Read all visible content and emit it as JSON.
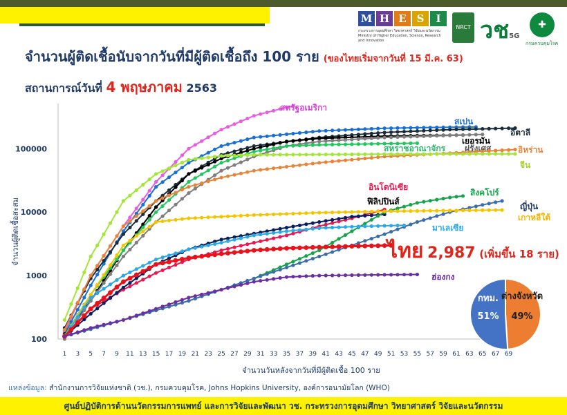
{
  "header": {
    "title": "จำนวนผู้ติดเชื้อนับจากวันที่มีผู้ติดเชื้อถึง 100 ราย",
    "title_note": "(ของไทยเริ่มจากวันที่ 15 มี.ค. 63)",
    "situation_prefix": "สถานการณ์วันที่",
    "situation_date": "4 พฤษภาคม",
    "situation_year": "2563"
  },
  "logos": {
    "mhesi_letters": [
      "M",
      "H",
      "E",
      "S",
      "I"
    ],
    "mhesi_colors": [
      "#2f4f9e",
      "#6a3d99",
      "#e07b1a",
      "#d9a300",
      "#1d8a4a"
    ],
    "mhesi_caption": "กระทรวงการอุดมศึกษา วิทยาศาสตร์ วิจัยและนวัตกรรม Ministry of Higher Education, Science, Research and Innovation",
    "nrct": "NRCT",
    "vor": "วช",
    "vor_5g": "5G",
    "dept_caption": "กรมควบคุมโรค"
  },
  "thai_callout": {
    "name": "ไทย",
    "value": "2,987",
    "increase": "(เพิ่มขึ้น 18 ราย)"
  },
  "source": {
    "label": "แหล่งข้อมูล:",
    "text": "สำนักงานการวิจัยแห่งชาติ (วช.), กรมควบคุมโรค, Johns Hopkins University, องค์การอนามัยโลก (WHO)"
  },
  "footer": {
    "text": "ศูนย์ปฏิบัติการด้านนวัตกรรมการแพทย์ และการวิจัยและพัฒนา วช. กระทรวงการอุดมศึกษา วิทยาศาสตร์ วิจัยและนวัตกรรม"
  },
  "chart_data": {
    "type": "line",
    "title": "จำนวนผู้ติดเชื้อนับจากวันที่มีผู้ติดเชื้อถึง 100 ราย",
    "xlabel": "จำนวนวันหลังจากวันที่มีผู้ติดเชื้อ 100 ราย",
    "ylabel": "จำนวนผู้ติดเชื้อสะสม",
    "y_scale": "log",
    "ylim": [
      100,
      400000
    ],
    "xlim": [
      0,
      70
    ],
    "y_ticks": [
      100,
      1000,
      10000,
      100000
    ],
    "y_tick_labels": [
      "100",
      "1000",
      "10000",
      "100000"
    ],
    "x_ticks": [
      1,
      3,
      5,
      7,
      9,
      11,
      13,
      15,
      17,
      19,
      21,
      23,
      25,
      27,
      29,
      31,
      33,
      35,
      37,
      39,
      41,
      43,
      45,
      47,
      49,
      51,
      53,
      55,
      57,
      59,
      61,
      63,
      65,
      67,
      69
    ],
    "series": [
      {
        "name": "สหรัฐอเมริกา",
        "color": "#e85de0",
        "label_color": "#d63fd6",
        "points": [
          [
            1,
            130
          ],
          [
            5,
            1000
          ],
          [
            10,
            6000
          ],
          [
            15,
            30000
          ],
          [
            20,
            100000
          ],
          [
            25,
            200000
          ],
          [
            30,
            330000
          ],
          [
            35,
            450000
          ],
          [
            36,
            470000
          ]
        ]
      },
      {
        "name": "สเปน",
        "color": "#1a6fd6",
        "label_color": "#1a6fd6",
        "points": [
          [
            1,
            120
          ],
          [
            5,
            700
          ],
          [
            10,
            5000
          ],
          [
            15,
            25000
          ],
          [
            20,
            60000
          ],
          [
            25,
            110000
          ],
          [
            30,
            150000
          ],
          [
            40,
            190000
          ],
          [
            50,
            210000
          ],
          [
            60,
            218000
          ],
          [
            64,
            220000
          ]
        ]
      },
      {
        "name": "อิตาลี",
        "color": "#1c2d3a",
        "label_color": "#1c2d3a",
        "points": [
          [
            1,
            150
          ],
          [
            5,
            900
          ],
          [
            10,
            4500
          ],
          [
            15,
            15000
          ],
          [
            20,
            40000
          ],
          [
            25,
            80000
          ],
          [
            30,
            110000
          ],
          [
            40,
            150000
          ],
          [
            50,
            180000
          ],
          [
            60,
            200000
          ],
          [
            70,
            211000
          ]
        ]
      },
      {
        "name": "เยอรมัน",
        "color": "#000000",
        "label_color": "#000000",
        "points": [
          [
            1,
            120
          ],
          [
            5,
            400
          ],
          [
            10,
            2500
          ],
          [
            15,
            12000
          ],
          [
            20,
            40000
          ],
          [
            25,
            70000
          ],
          [
            30,
            100000
          ],
          [
            35,
            130000
          ],
          [
            40,
            145000
          ],
          [
            50,
            158000
          ],
          [
            62,
            164000
          ]
        ]
      },
      {
        "name": "ฝรั่งเศส",
        "color": "#7f7f7f",
        "label_color": "#555555",
        "points": [
          [
            1,
            100
          ],
          [
            5,
            400
          ],
          [
            10,
            2000
          ],
          [
            15,
            7000
          ],
          [
            20,
            20000
          ],
          [
            25,
            45000
          ],
          [
            30,
            75000
          ],
          [
            35,
            110000
          ],
          [
            40,
            130000
          ],
          [
            50,
            150000
          ],
          [
            65,
            168000
          ]
        ]
      },
      {
        "name": "สหราชอาณาจักร",
        "color": "#22c55e",
        "label_color": "#2fb56e",
        "points": [
          [
            1,
            115
          ],
          [
            5,
            500
          ],
          [
            10,
            2500
          ],
          [
            15,
            10000
          ],
          [
            20,
            30000
          ],
          [
            25,
            60000
          ],
          [
            30,
            90000
          ],
          [
            35,
            110000
          ],
          [
            40,
            115000
          ],
          [
            50,
            120000
          ],
          [
            55,
            122000
          ]
        ]
      },
      {
        "name": "อิหร่าน",
        "color": "#e8843a",
        "label_color": "#e8843a",
        "points": [
          [
            1,
            140
          ],
          [
            5,
            1000
          ],
          [
            10,
            6000
          ],
          [
            15,
            15000
          ],
          [
            20,
            25000
          ],
          [
            25,
            35000
          ],
          [
            30,
            45000
          ],
          [
            40,
            60000
          ],
          [
            50,
            75000
          ],
          [
            60,
            85000
          ],
          [
            70,
            97000
          ]
        ]
      },
      {
        "name": "จีน",
        "color": "#a3e635",
        "label_color": "#9fd32a",
        "points": [
          [
            1,
            200
          ],
          [
            5,
            2000
          ],
          [
            10,
            15000
          ],
          [
            15,
            40000
          ],
          [
            20,
            67000
          ],
          [
            25,
            77000
          ],
          [
            30,
            80000
          ],
          [
            40,
            81000
          ],
          [
            50,
            82000
          ],
          [
            60,
            82500
          ],
          [
            70,
            82800
          ]
        ]
      },
      {
        "name": "อินโดนิเซีย",
        "color": "#e8174f",
        "label_color": "#e8174f",
        "points": [
          [
            1,
            110
          ],
          [
            5,
            300
          ],
          [
            10,
            600
          ],
          [
            15,
            1100
          ],
          [
            20,
            1800
          ],
          [
            25,
            2500
          ],
          [
            30,
            3300
          ],
          [
            35,
            4300
          ],
          [
            40,
            6000
          ],
          [
            45,
            8000
          ],
          [
            50,
            11000
          ]
        ]
      },
      {
        "name": "ฟิลิปปินส์",
        "color": "#0b1f5c",
        "label_color": "#000000",
        "points": [
          [
            1,
            110
          ],
          [
            5,
            250
          ],
          [
            10,
            650
          ],
          [
            15,
            1500
          ],
          [
            20,
            2600
          ],
          [
            25,
            3700
          ],
          [
            30,
            4600
          ],
          [
            35,
            5700
          ],
          [
            40,
            7000
          ],
          [
            45,
            8500
          ],
          [
            50,
            9200
          ]
        ]
      },
      {
        "name": "สิงคโปร์",
        "color": "#16a34a",
        "label_color": "#16a34a",
        "points": [
          [
            1,
            110
          ],
          [
            10,
            200
          ],
          [
            20,
            400
          ],
          [
            30,
            900
          ],
          [
            40,
            2500
          ],
          [
            45,
            5000
          ],
          [
            50,
            10000
          ],
          [
            55,
            14000
          ],
          [
            60,
            17000
          ],
          [
            62,
            18000
          ]
        ]
      },
      {
        "name": "ญี่ปุ่น",
        "color": "#3b6ea8",
        "label_color": "#1f3a66",
        "points": [
          [
            1,
            110
          ],
          [
            10,
            200
          ],
          [
            20,
            400
          ],
          [
            30,
            900
          ],
          [
            40,
            2000
          ],
          [
            50,
            4500
          ],
          [
            55,
            7000
          ],
          [
            60,
            10000
          ],
          [
            65,
            13000
          ],
          [
            68,
            15000
          ]
        ]
      },
      {
        "name": "เกาหลีใต้",
        "color": "#f2c500",
        "label_color": "#f2b400",
        "points": [
          [
            1,
            110
          ],
          [
            5,
            500
          ],
          [
            10,
            3000
          ],
          [
            15,
            7000
          ],
          [
            20,
            8000
          ],
          [
            30,
            9000
          ],
          [
            40,
            9800
          ],
          [
            50,
            10300
          ],
          [
            60,
            10600
          ],
          [
            68,
            10800
          ]
        ]
      },
      {
        "name": "มาเลเซีย",
        "color": "#2aa8e8",
        "label_color": "#2aa8e8",
        "points": [
          [
            1,
            110
          ],
          [
            5,
            450
          ],
          [
            10,
            1000
          ],
          [
            15,
            1800
          ],
          [
            20,
            2600
          ],
          [
            25,
            3300
          ],
          [
            30,
            4300
          ],
          [
            35,
            5000
          ],
          [
            40,
            5600
          ],
          [
            45,
            5900
          ],
          [
            53,
            6200
          ]
        ]
      },
      {
        "name": "ไทย",
        "color": "#e8131a",
        "label_color": "#e8131a",
        "points": [
          [
            1,
            110
          ],
          [
            5,
            300
          ],
          [
            10,
            800
          ],
          [
            15,
            1500
          ],
          [
            20,
            1900
          ],
          [
            25,
            2200
          ],
          [
            30,
            2500
          ],
          [
            35,
            2700
          ],
          [
            40,
            2800
          ],
          [
            45,
            2900
          ],
          [
            51,
            2987
          ]
        ]
      },
      {
        "name": "ฮ่องกง",
        "color": "#6b2fa3",
        "label_color": "#6b2fa3",
        "points": [
          [
            1,
            110
          ],
          [
            5,
            150
          ],
          [
            10,
            200
          ],
          [
            15,
            300
          ],
          [
            20,
            450
          ],
          [
            25,
            600
          ],
          [
            30,
            800
          ],
          [
            35,
            950
          ],
          [
            40,
            1000
          ],
          [
            50,
            1030
          ],
          [
            55,
            1040
          ]
        ]
      }
    ]
  },
  "pie_data": {
    "type": "pie",
    "slices": [
      {
        "label": "กทม.",
        "value": 51,
        "value_label": "51%",
        "color": "#4472c4"
      },
      {
        "label": "ต่างจังหวัด",
        "value": 49,
        "value_label": "49%",
        "color": "#ed7d31"
      }
    ]
  }
}
